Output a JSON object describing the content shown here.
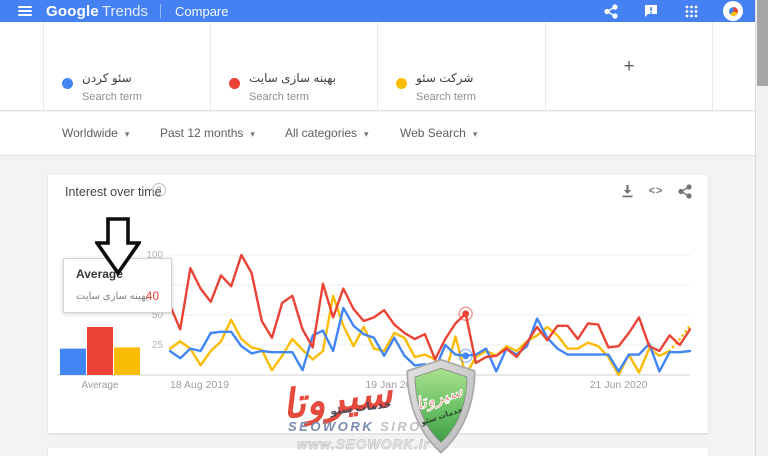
{
  "header": {
    "brand_bold": "Google",
    "brand_light": "Trends",
    "nav_compare": "Compare"
  },
  "terms": {
    "items": [
      {
        "label": "سئو کردن",
        "sublabel": "Search term",
        "color": "#4285f4"
      },
      {
        "label": "بهینه سازی سایت",
        "sublabel": "Search term",
        "color": "#ea4335"
      },
      {
        "label": "شرکت سئو",
        "sublabel": "Search term",
        "color": "#fbbc05"
      }
    ],
    "add_label": "+"
  },
  "filters": {
    "caret": "▾",
    "items": [
      {
        "label": "Worldwide"
      },
      {
        "label": "Past 12 months"
      },
      {
        "label": "All categories"
      },
      {
        "label": "Web Search"
      }
    ]
  },
  "widget": {
    "title": "Interest over time",
    "help": "?",
    "embed_glyph": "<>"
  },
  "tooltip": {
    "title": "Average",
    "term": "بهینه سازی سایت",
    "value": "40",
    "value_color": "#ea4335"
  },
  "chart_data": {
    "type": "line",
    "title": "Interest over time",
    "ylim": [
      0,
      100
    ],
    "y_ticks": [
      25,
      50,
      75,
      100
    ],
    "grid": true,
    "avg_label": "Average",
    "x_tick_labels": [
      "18 Aug 2019",
      "19 Jan 2020",
      "21 Jun 2020"
    ],
    "x_tick_indices": [
      0,
      22,
      44
    ],
    "highlight_index": 29,
    "series": [
      {
        "name": "سئو کردن",
        "color": "#4285f4",
        "average": 22,
        "values": [
          20,
          14,
          22,
          20,
          35,
          36,
          36,
          24,
          18,
          20,
          19,
          19,
          19,
          4,
          33,
          37,
          20,
          56,
          41,
          34,
          31,
          16,
          31,
          16,
          8,
          9,
          5,
          25,
          17,
          16,
          17,
          22,
          3,
          22,
          17,
          24,
          47,
          31,
          22,
          17,
          17,
          17,
          17,
          17,
          3,
          17,
          17,
          26,
          3,
          19,
          19,
          20
        ]
      },
      {
        "name": "بهینه سازی سایت",
        "color": "#ea4335",
        "average": 40,
        "values": [
          58,
          38,
          89,
          72,
          61,
          83,
          74,
          100,
          85,
          45,
          31,
          60,
          66,
          38,
          23,
          76,
          48,
          72,
          55,
          45,
          48,
          54,
          42,
          35,
          30,
          34,
          13,
          30,
          43,
          51,
          10,
          15,
          16,
          22,
          15,
          27,
          40,
          29,
          41,
          41,
          30,
          43,
          42,
          23,
          24,
          35,
          48,
          24,
          20,
          33,
          25,
          38
        ]
      },
      {
        "name": "شرکت سئو",
        "color": "#fbbc05",
        "average": 23,
        "dotted_from": 49,
        "values": [
          22,
          28,
          22,
          8,
          20,
          28,
          46,
          30,
          23,
          21,
          4,
          16,
          30,
          21,
          13,
          20,
          66,
          41,
          24,
          40,
          22,
          20,
          35,
          31,
          15,
          17,
          13,
          1,
          32,
          0,
          15,
          20,
          16,
          24,
          20,
          28,
          33,
          40,
          33,
          22,
          22,
          27,
          24,
          15,
          0,
          17,
          2,
          22,
          16,
          20,
          30,
          41
        ]
      }
    ]
  },
  "watermark": {
    "signature": "سیروتا",
    "services": "خدمات سئو",
    "brand_primary": "SEOWORK",
    "brand_secondary": "SIROTA",
    "url": "www.SEOWORK.ir",
    "shield_signature": "سیروتا",
    "shield_services": "خدمات سئو"
  }
}
